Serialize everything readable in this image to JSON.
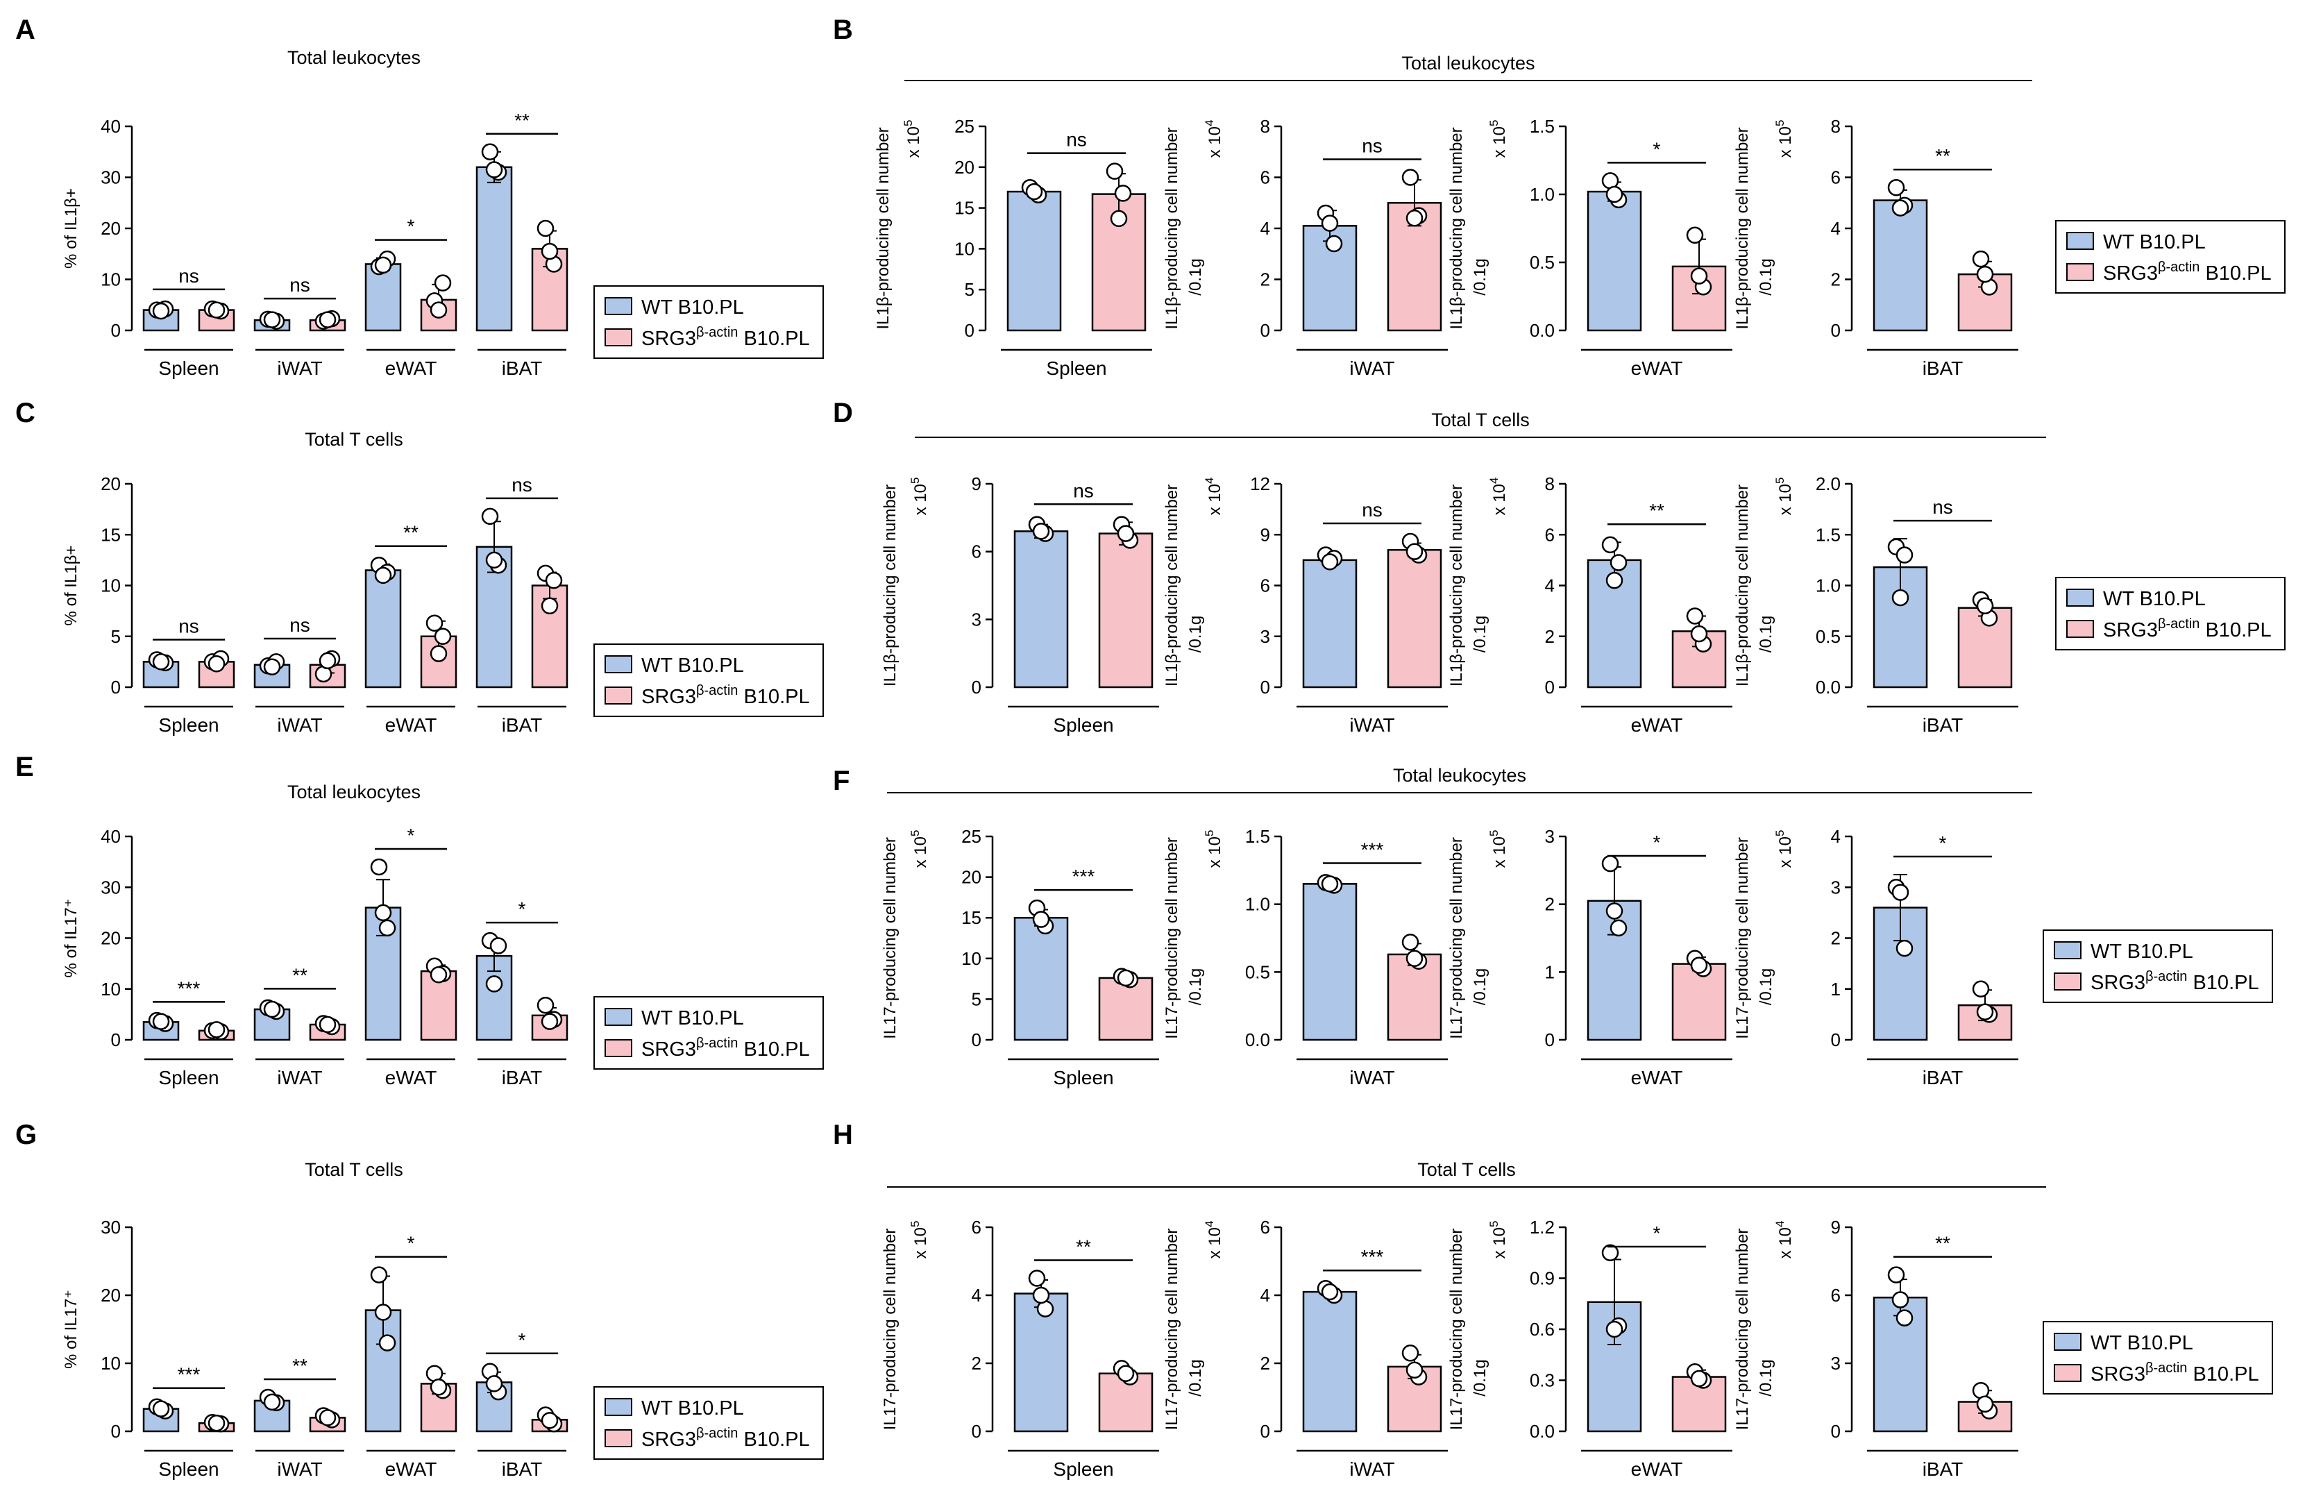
{
  "legend": {
    "wt": "WT B10.PL",
    "ko_prefix": "SRG3",
    "ko_sup": "β-actin",
    "ko_suffix": " B10.PL"
  },
  "colors": {
    "wt_fill": "#aec7e8",
    "ko_fill": "#f7c3c8",
    "stroke": "#000000",
    "point_fill": "#ffffff"
  },
  "chart_data": [
    {
      "panel": "A",
      "type": "bar",
      "title": "Total leukocytes",
      "ylabel": "% of IL1β+",
      "ylim": [
        0,
        40
      ],
      "yticks": [
        "0",
        "10",
        "20",
        "30",
        "40"
      ],
      "categories": [
        "Spleen",
        "iWAT",
        "eWAT",
        "iBAT"
      ],
      "series": [
        {
          "name": "WT B10.PL",
          "values": [
            4,
            2,
            13,
            32
          ],
          "errors": [
            0.5,
            0.7,
            1.2,
            3
          ],
          "points": [
            [
              4.0,
              4.2,
              3.8
            ],
            [
              2.2,
              1.8,
              2.1
            ],
            [
              12.5,
              14,
              12.8
            ],
            [
              35,
              31,
              31.5
            ]
          ]
        },
        {
          "name": "SRG3β-actin B10.PL",
          "values": [
            4,
            2,
            6,
            16
          ],
          "errors": [
            0.5,
            0.7,
            3,
            3.5
          ],
          "points": [
            [
              4.2,
              3.8,
              4.0
            ],
            [
              1.8,
              2.3,
              2.1
            ],
            [
              5.8,
              9.3,
              4.0
            ],
            [
              20,
              13,
              15.5
            ]
          ]
        }
      ],
      "significance": [
        "ns",
        "ns",
        "*",
        "**"
      ]
    },
    {
      "panel": "B",
      "type": "bar",
      "group_title": "Total leukocytes",
      "subplots": [
        {
          "category": "Spleen",
          "ylabel": "IL1β-producing cell number",
          "scale": "x 10",
          "scale_exp": "5",
          "ylim": [
            0,
            25
          ],
          "yticks": [
            "0",
            "5",
            "10",
            "15",
            "20",
            "25"
          ],
          "values": [
            17,
            16.7
          ],
          "errors": [
            0.6,
            2.5
          ],
          "points": [
            [
              17.5,
              16.6,
              17.0
            ],
            [
              19.5,
              16.8,
              13.7
            ]
          ],
          "significance": "ns"
        },
        {
          "category": "iWAT",
          "ylabel": "IL1β-producing cell number",
          "ylabel2": "/0.1g",
          "scale": "x 10",
          "scale_exp": "4",
          "ylim": [
            0,
            8
          ],
          "yticks": [
            "0",
            "2",
            "4",
            "6",
            "8"
          ],
          "values": [
            4.1,
            5.0
          ],
          "errors": [
            0.6,
            0.9
          ],
          "points": [
            [
              4.6,
              3.4,
              4.2
            ],
            [
              6.0,
              4.5,
              4.4
            ]
          ],
          "significance": "ns"
        },
        {
          "category": "eWAT",
          "ylabel": "IL1β-producing cell number",
          "ylabel2": "/0.1g",
          "scale": "x 10",
          "scale_exp": "5",
          "ylim": [
            0,
            1.5
          ],
          "yticks": [
            "0.0",
            "0.5",
            "1.0",
            "1.5"
          ],
          "values": [
            1.02,
            0.47
          ],
          "errors": [
            0.07,
            0.2
          ],
          "points": [
            [
              1.1,
              0.96,
              1.0
            ],
            [
              0.7,
              0.32,
              0.4
            ]
          ],
          "significance": "*"
        },
        {
          "category": "iBAT",
          "ylabel": "IL1β-producing cell number",
          "ylabel2": "/0.1g",
          "scale": "x 10",
          "scale_exp": "5",
          "ylim": [
            0,
            8
          ],
          "yticks": [
            "0",
            "2",
            "4",
            "6",
            "8"
          ],
          "values": [
            5.1,
            2.2
          ],
          "errors": [
            0.4,
            0.5
          ],
          "points": [
            [
              5.6,
              4.9,
              4.8
            ],
            [
              2.8,
              1.7,
              2.2
            ]
          ],
          "significance": "**"
        }
      ]
    },
    {
      "panel": "C",
      "type": "bar",
      "title": "Total T cells",
      "ylabel": "% of IL1β+",
      "ylim": [
        0,
        20
      ],
      "yticks": [
        "0",
        "5",
        "10",
        "15",
        "20"
      ],
      "categories": [
        "Spleen",
        "iWAT",
        "eWAT",
        "iBAT"
      ],
      "series": [
        {
          "name": "WT B10.PL",
          "values": [
            2.5,
            2.2,
            11.5,
            13.8
          ],
          "errors": [
            0.3,
            0.4,
            0.6,
            2.5
          ],
          "points": [
            [
              2.7,
              2.4,
              2.5
            ],
            [
              2.1,
              2.5,
              2.0
            ],
            [
              12.0,
              11.3,
              11.0
            ],
            [
              16.8,
              12.0,
              12.5
            ]
          ]
        },
        {
          "name": "SRG3β-actin B10.PL",
          "values": [
            2.5,
            2.2,
            5.0,
            10.0
          ],
          "errors": [
            0.4,
            0.8,
            1.5,
            1.3
          ],
          "points": [
            [
              2.5,
              2.8,
              2.3
            ],
            [
              1.3,
              2.8,
              2.6
            ],
            [
              6.3,
              5.0,
              3.3
            ],
            [
              11.2,
              10.5,
              8.0
            ]
          ]
        }
      ],
      "significance": [
        "ns",
        "ns",
        "**",
        "ns"
      ]
    },
    {
      "panel": "D",
      "type": "bar",
      "group_title": "Total T cells",
      "subplots": [
        {
          "category": "Spleen",
          "ylabel": "IL1β-producing cell number",
          "scale": "x 10",
          "scale_exp": "5",
          "ylim": [
            0,
            9
          ],
          "yticks": [
            "0",
            "3",
            "6",
            "9"
          ],
          "values": [
            6.9,
            6.8
          ],
          "errors": [
            0.3,
            0.5
          ],
          "points": [
            [
              7.2,
              6.8,
              6.9
            ],
            [
              7.2,
              6.5,
              6.8
            ]
          ],
          "significance": "ns"
        },
        {
          "category": "iWAT",
          "ylabel": "IL1β-producing cell number",
          "ylabel2": "/0.1g",
          "scale": "x 10",
          "scale_exp": "4",
          "ylim": [
            0,
            12
          ],
          "yticks": [
            "0",
            "3",
            "6",
            "9",
            "12"
          ],
          "values": [
            7.5,
            8.1
          ],
          "errors": [
            0.3,
            0.4
          ],
          "points": [
            [
              7.8,
              7.6,
              7.4
            ],
            [
              8.6,
              7.8,
              8.0
            ]
          ],
          "significance": "ns"
        },
        {
          "category": "eWAT",
          "ylabel": "IL1β-producing cell number",
          "ylabel2": "/0.1g",
          "scale": "x 10",
          "scale_exp": "4",
          "ylim": [
            0,
            8
          ],
          "yticks": [
            "0",
            "2",
            "4",
            "6",
            "8"
          ],
          "values": [
            5.0,
            2.2
          ],
          "errors": [
            0.7,
            0.6
          ],
          "points": [
            [
              5.6,
              4.9,
              4.2
            ],
            [
              2.8,
              1.7,
              2.1
            ]
          ],
          "significance": "**"
        },
        {
          "category": "iBAT",
          "ylabel": "IL1β-producing cell number",
          "ylabel2": "/0.1g",
          "scale": "x 10",
          "scale_exp": "5",
          "ylim": [
            0,
            2.0
          ],
          "yticks": [
            "0.0",
            "0.5",
            "1.0",
            "1.5",
            "2.0"
          ],
          "values": [
            1.18,
            0.78
          ],
          "errors": [
            0.28,
            0.08
          ],
          "points": [
            [
              1.38,
              1.3,
              0.88
            ],
            [
              0.86,
              0.68,
              0.8
            ]
          ],
          "significance": "ns"
        }
      ]
    },
    {
      "panel": "E",
      "type": "bar",
      "title": "Total leukocytes",
      "ylabel": "% of IL17⁺",
      "ylim": [
        0,
        40
      ],
      "yticks": [
        "0",
        "10",
        "20",
        "30",
        "40"
      ],
      "categories": [
        "Spleen",
        "iWAT",
        "eWAT",
        "iBAT"
      ],
      "series": [
        {
          "name": "WT B10.PL",
          "values": [
            3.5,
            6.0,
            26.0,
            16.5
          ],
          "errors": [
            0.4,
            0.5,
            5.5,
            3.0
          ],
          "points": [
            [
              3.8,
              3.2,
              3.6
            ],
            [
              6.3,
              5.6,
              6.0
            ],
            [
              34.0,
              22.0,
              25.0
            ],
            [
              19.5,
              18.5,
              11.0
            ]
          ]
        },
        {
          "name": "SRG3β-actin B10.PL",
          "values": [
            1.8,
            3.0,
            13.5,
            4.8
          ],
          "errors": [
            0.3,
            0.6,
            1.2,
            1.5
          ],
          "points": [
            [
              1.8,
              1.6,
              2.0
            ],
            [
              3.2,
              2.6,
              3.0
            ],
            [
              14.5,
              13.0,
              12.8
            ],
            [
              6.8,
              4.0,
              3.6
            ]
          ]
        }
      ],
      "significance": [
        "***",
        "**",
        "*",
        "*"
      ]
    },
    {
      "panel": "F",
      "type": "bar",
      "group_title": "Total leukocytes",
      "subplots": [
        {
          "category": "Spleen",
          "ylabel": "IL17-producing cell number",
          "scale": "x 10",
          "scale_exp": "5",
          "ylim": [
            0,
            25
          ],
          "yticks": [
            "0",
            "5",
            "10",
            "15",
            "20",
            "25"
          ],
          "values": [
            15.0,
            7.6
          ],
          "errors": [
            1.0,
            0.3
          ],
          "points": [
            [
              16.2,
              14.0,
              14.8
            ],
            [
              7.8,
              7.4,
              7.6
            ]
          ],
          "significance": "***"
        },
        {
          "category": "iWAT",
          "ylabel": "IL17-producing cell number",
          "ylabel2": "/0.1g",
          "scale": "x 10",
          "scale_exp": "5",
          "ylim": [
            0,
            1.5
          ],
          "yticks": [
            "0.0",
            "0.5",
            "1.0",
            "1.5"
          ],
          "values": [
            1.15,
            0.63
          ],
          "errors": [
            0.02,
            0.08
          ],
          "points": [
            [
              1.16,
              1.14,
              1.15
            ],
            [
              0.72,
              0.58,
              0.6
            ]
          ],
          "significance": "***"
        },
        {
          "category": "eWAT",
          "ylabel": "IL17-producing cell number",
          "ylabel2": "/0.1g",
          "scale": "x 10",
          "scale_exp": "5",
          "ylim": [
            0,
            3
          ],
          "yticks": [
            "0",
            "1",
            "2",
            "3"
          ],
          "values": [
            2.05,
            1.12
          ],
          "errors": [
            0.5,
            0.1
          ],
          "points": [
            [
              2.6,
              1.65,
              1.9
            ],
            [
              1.2,
              1.05,
              1.1
            ]
          ],
          "significance": "*"
        },
        {
          "category": "iBAT",
          "ylabel": "IL17-producing cell number",
          "ylabel2": "/0.1g",
          "scale": "x 10",
          "scale_exp": "5",
          "ylim": [
            0,
            4
          ],
          "yticks": [
            "0",
            "1",
            "2",
            "3",
            "4"
          ],
          "values": [
            2.6,
            0.68
          ],
          "errors": [
            0.65,
            0.3
          ],
          "points": [
            [
              3.0,
              1.8,
              2.9
            ],
            [
              1.0,
              0.5,
              0.55
            ]
          ],
          "significance": "*"
        }
      ]
    },
    {
      "panel": "G",
      "type": "bar",
      "title": "Total T cells",
      "ylabel": "% of IL17⁺",
      "ylim": [
        0,
        30
      ],
      "yticks": [
        "0",
        "10",
        "20",
        "30"
      ],
      "categories": [
        "Spleen",
        "iWAT",
        "eWAT",
        "iBAT"
      ],
      "series": [
        {
          "name": "WT B10.PL",
          "values": [
            3.3,
            4.5,
            17.8,
            7.2
          ],
          "errors": [
            0.4,
            0.5,
            5.0,
            1.5
          ],
          "points": [
            [
              3.6,
              3.0,
              3.3
            ],
            [
              5.0,
              4.2,
              4.3
            ],
            [
              23.0,
              13.0,
              17.5
            ],
            [
              8.8,
              5.8,
              7.0
            ]
          ]
        },
        {
          "name": "SRG3β-actin B10.PL",
          "values": [
            1.2,
            2.0,
            7.0,
            1.7
          ],
          "errors": [
            0.2,
            0.4,
            1.5,
            0.6
          ],
          "points": [
            [
              1.3,
              1.1,
              1.2
            ],
            [
              2.3,
              1.7,
              2.0
            ],
            [
              8.5,
              6.0,
              6.5
            ],
            [
              2.4,
              1.1,
              1.6
            ]
          ]
        }
      ],
      "significance": [
        "***",
        "**",
        "*",
        "*"
      ]
    },
    {
      "panel": "H",
      "type": "bar",
      "group_title": "Total T cells",
      "subplots": [
        {
          "category": "Spleen",
          "ylabel": "IL17-producing cell number",
          "scale": "x 10",
          "scale_exp": "5",
          "ylim": [
            0,
            6
          ],
          "yticks": [
            "0",
            "2",
            "4",
            "6"
          ],
          "values": [
            4.05,
            1.7
          ],
          "errors": [
            0.4,
            0.15
          ],
          "points": [
            [
              4.5,
              3.6,
              4.0
            ],
            [
              1.85,
              1.6,
              1.7
            ]
          ],
          "significance": "**"
        },
        {
          "category": "iWAT",
          "ylabel": "IL17-producing cell number",
          "ylabel2": "/0.1g",
          "scale": "x 10",
          "scale_exp": "4",
          "ylim": [
            0,
            6
          ],
          "yticks": [
            "0",
            "2",
            "4",
            "6"
          ],
          "values": [
            4.1,
            1.9
          ],
          "errors": [
            0.1,
            0.35
          ],
          "points": [
            [
              4.2,
              4.0,
              4.1
            ],
            [
              2.3,
              1.6,
              1.8
            ]
          ],
          "significance": "***"
        },
        {
          "category": "eWAT",
          "ylabel": "IL17-producing cell number",
          "ylabel2": "/0.1g",
          "scale": "x 10",
          "scale_exp": "5",
          "ylim": [
            0,
            1.2
          ],
          "yticks": [
            "0.0",
            "0.3",
            "0.6",
            "0.9",
            "1.2"
          ],
          "values": [
            0.76,
            0.32
          ],
          "errors": [
            0.25,
            0.04
          ],
          "points": [
            [
              1.05,
              0.62,
              0.6
            ],
            [
              0.35,
              0.3,
              0.31
            ]
          ],
          "significance": "*"
        },
        {
          "category": "iBAT",
          "ylabel": "IL17-producing cell number",
          "ylabel2": "/0.1g",
          "scale": "x 10",
          "scale_exp": "4",
          "ylim": [
            0,
            9
          ],
          "yticks": [
            "0",
            "3",
            "6",
            "9"
          ],
          "values": [
            5.9,
            1.3
          ],
          "errors": [
            0.8,
            0.5
          ],
          "points": [
            [
              6.9,
              5.0,
              5.8
            ],
            [
              1.8,
              0.9,
              1.2
            ]
          ],
          "significance": "**"
        }
      ]
    }
  ]
}
